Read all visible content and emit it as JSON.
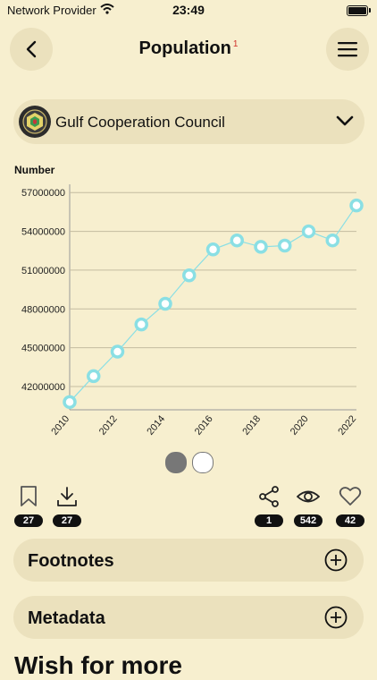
{
  "status": {
    "carrier": "Network Provider",
    "time": "23:49"
  },
  "header": {
    "title": "Population",
    "footnote_mark": "1"
  },
  "selector": {
    "label": "Gulf Cooperation Council"
  },
  "chart_data": {
    "type": "line",
    "ylabel": "Number",
    "x": [
      "2010",
      "2011",
      "2012",
      "2013",
      "2014",
      "2015",
      "2016",
      "2017",
      "2018",
      "2019",
      "2020",
      "2021",
      "2022"
    ],
    "xticks": [
      "2010",
      "2012",
      "2014",
      "2016",
      "2018",
      "2020",
      "2022"
    ],
    "yticks": [
      42000000,
      45000000,
      48000000,
      51000000,
      54000000,
      57000000
    ],
    "ylim": [
      40200000,
      57500000
    ],
    "values": [
      40800000,
      42800000,
      44700000,
      46800000,
      48400000,
      50600000,
      52600000,
      53300000,
      52800000,
      52900000,
      54000000,
      53300000,
      56000000
    ],
    "line_color": "#8adfe4",
    "grid": true
  },
  "pager": {
    "pages": 2,
    "active": 0
  },
  "actions": {
    "bookmark_count": "27",
    "download_count": "27",
    "share_count": "1",
    "views_count": "542",
    "likes_count": "42"
  },
  "sections": {
    "footnotes": "Footnotes",
    "metadata": "Metadata"
  },
  "promo": {
    "heading": "Wish for more"
  }
}
